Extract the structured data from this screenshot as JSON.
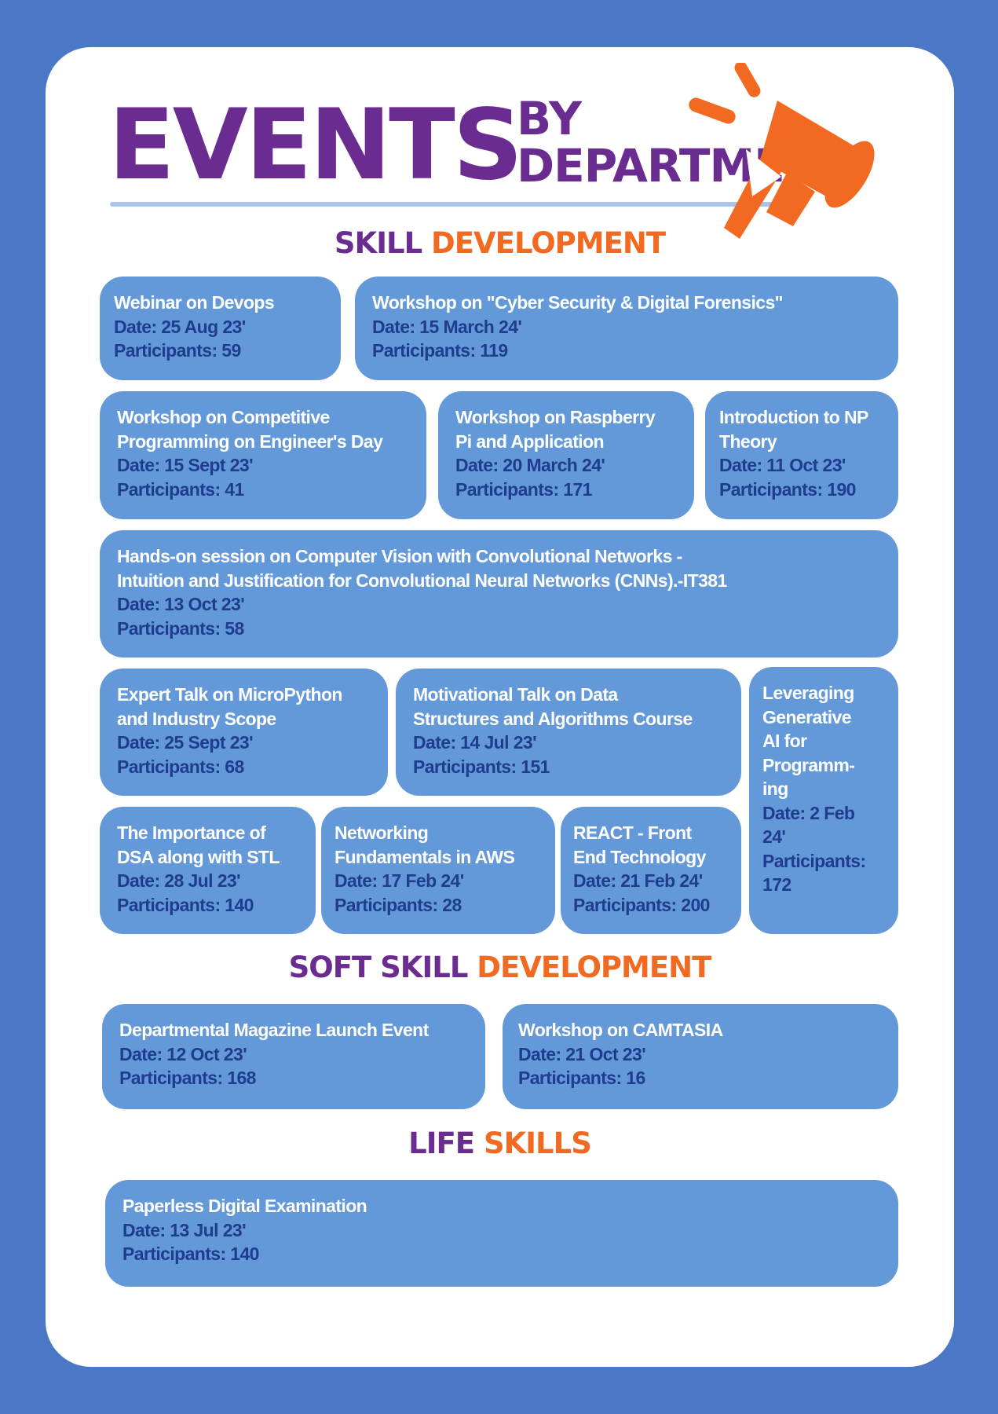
{
  "header": {
    "title_big": "EVENTS",
    "title_small_1": "BY",
    "title_small_2": "DEPARTMENT",
    "icon": "megaphone-icon"
  },
  "colors": {
    "background": "#4a78c6",
    "purple": "#6a2c91",
    "orange": "#f26a21",
    "card": "#6399d8",
    "card_text": "#1f3c8f"
  },
  "sections": {
    "skill": {
      "word1": "SKILL",
      "word2": "DEVELOPMENT",
      "events": [
        {
          "title": "Webinar on Devops",
          "date": "Date: 25 Aug 23'",
          "participants": "Participants: 59"
        },
        {
          "title": "Workshop on \"Cyber Security & Digital Forensics\"",
          "date": "Date: 15 March 24'",
          "participants": "Participants: 119"
        },
        {
          "title_1": "Workshop on Competitive",
          "title_2": "Programming on Engineer's Day",
          "date": "Date: 15 Sept 23'",
          "participants": "Participants: 41"
        },
        {
          "title_1": "Workshop on Raspberry",
          "title_2": "Pi and Application",
          "date": "Date: 20 March 24'",
          "participants": "Participants: 171"
        },
        {
          "title_1": "Introduction to NP",
          "title_2": "Theory",
          "date": "Date: 11 Oct 23'",
          "participants": "Participants: 190"
        },
        {
          "title_1": "Hands-on session on Computer Vision with Convolutional Networks -",
          "title_2": "Intuition and Justification for Convolutional Neural Networks (CNNs).-IT381",
          "date": "Date: 13 Oct 23'",
          "participants": "Participants: 58"
        },
        {
          "title_1": "Expert Talk on MicroPython",
          "title_2": "and Industry Scope",
          "date": "Date: 25 Sept 23'",
          "participants": "Participants: 68"
        },
        {
          "title_1": "Motivational Talk on Data",
          "title_2": "Structures and Algorithms Course",
          "date": "Date: 14 Jul 23'",
          "participants": "Participants: 151"
        },
        {
          "title_1": "Leveraging",
          "title_2": "Generative",
          "title_3": "AI for",
          "title_4": "Programm-",
          "title_5": "ing",
          "date_1": "Date: 2 Feb",
          "date_2": "24'",
          "participants_1": "Participants:",
          "participants_2": "172"
        },
        {
          "title_1": "The Importance of",
          "title_2": "DSA along with STL",
          "date": "Date: 28 Jul 23'",
          "participants": "Participants: 140"
        },
        {
          "title_1": "Networking",
          "title_2": "Fundamentals in AWS",
          "date": "Date: 17 Feb 24'",
          "participants": "Participants: 28"
        },
        {
          "title_1": "REACT - Front",
          "title_2": "End Technology",
          "date": "Date: 21 Feb 24'",
          "participants": "Participants: 200"
        }
      ]
    },
    "soft": {
      "word1": "SOFT SKILL",
      "word2": "DEVELOPMENT",
      "events": [
        {
          "title": "Departmental Magazine Launch Event",
          "date": "Date: 12 Oct 23'",
          "participants": "Participants: 168"
        },
        {
          "title": "Workshop on CAMTASIA",
          "date": "Date: 21 Oct 23'",
          "participants": "Participants: 16"
        }
      ]
    },
    "life": {
      "word1": "LIFE",
      "word2": "SKILLS",
      "events": [
        {
          "title": "Paperless Digital Examination",
          "date": "Date: 13 Jul 23'",
          "participants": "Participants: 140"
        }
      ]
    }
  }
}
